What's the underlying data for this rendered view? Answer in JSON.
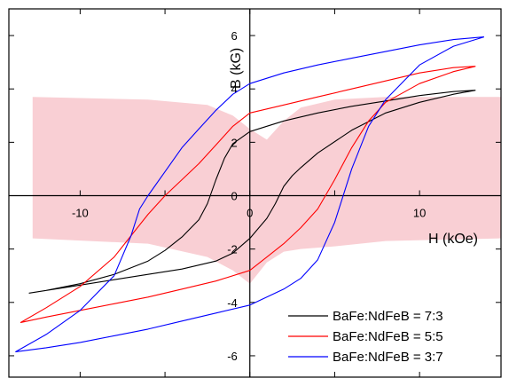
{
  "chart_data": {
    "type": "line",
    "xlabel": "H (kOe)",
    "ylabel": "B (kG)",
    "xlim": [
      -14.2,
      14.8
    ],
    "ylim": [
      -6.8,
      7.0
    ],
    "x_ticks": [
      -10,
      -5,
      0,
      5,
      10
    ],
    "y_ticks": [
      -6,
      -4,
      -2,
      0,
      2,
      4,
      6
    ],
    "x_tick_labels": [
      "-10",
      "0",
      "10"
    ],
    "y_tick_labels": [
      "-6",
      "-4",
      "-2",
      "0",
      "2",
      "4",
      "6"
    ],
    "legend_position": "bottom-right",
    "shaded_band": {
      "color": "#f9cfd4",
      "x": [
        -12.8,
        -6,
        -2.5,
        -1,
        0,
        1,
        2,
        3,
        5,
        8,
        14.8
      ],
      "upper": [
        3.7,
        3.6,
        3.4,
        3.0,
        2.5,
        2.1,
        2.8,
        3.3,
        3.6,
        3.7,
        3.7
      ],
      "lower": [
        -1.6,
        -1.8,
        -2.3,
        -2.8,
        -3.3,
        -2.5,
        -2.1,
        -2.0,
        -1.9,
        -1.7,
        -1.6
      ]
    },
    "series": [
      {
        "name": "BaFe:NdFeB = 7:3",
        "color": "#000000",
        "x": [
          13.3,
          12,
          10,
          8,
          6,
          4,
          2,
          0,
          -1,
          -1.5,
          -2,
          -2.5,
          -3,
          -4,
          -5,
          -6,
          -8,
          -10,
          -12,
          -13,
          -13,
          -12,
          -10,
          -8,
          -6,
          -4,
          -2,
          -1,
          0,
          1,
          1.5,
          2,
          2.5,
          3,
          4,
          6,
          8,
          10,
          12,
          13.3
        ],
        "y": [
          3.95,
          3.9,
          3.75,
          3.55,
          3.35,
          3.1,
          2.8,
          2.4,
          1.95,
          1.4,
          0.6,
          -0.3,
          -0.9,
          -1.55,
          -2.05,
          -2.45,
          -2.95,
          -3.3,
          -3.55,
          -3.65,
          -3.65,
          -3.55,
          -3.35,
          -3.15,
          -2.95,
          -2.75,
          -2.45,
          -2.15,
          -1.6,
          -0.85,
          -0.3,
          0.35,
          0.75,
          1.05,
          1.6,
          2.45,
          3.1,
          3.5,
          3.8,
          3.95
        ]
      },
      {
        "name": "BaFe:NdFeB = 5:5",
        "color": "#ff0000",
        "x": [
          13.3,
          12,
          10,
          8,
          6,
          4,
          2,
          0,
          -1,
          -2,
          -3,
          -4,
          -5,
          -6,
          -7,
          -8,
          -10,
          -12,
          -13.5,
          -13.5,
          -12,
          -10,
          -8,
          -6,
          -4,
          -2,
          0,
          1,
          2,
          3,
          4,
          5,
          6,
          7,
          8,
          10,
          12,
          13.3
        ],
        "y": [
          4.85,
          4.8,
          4.6,
          4.3,
          4.0,
          3.7,
          3.4,
          3.1,
          2.6,
          1.9,
          1.2,
          0.6,
          0.0,
          -0.7,
          -1.5,
          -2.3,
          -3.4,
          -4.2,
          -4.75,
          -4.75,
          -4.55,
          -4.3,
          -4.05,
          -3.8,
          -3.5,
          -3.2,
          -2.8,
          -2.3,
          -1.8,
          -1.2,
          -0.5,
          0.6,
          1.8,
          2.8,
          3.5,
          4.2,
          4.65,
          4.85
        ]
      },
      {
        "name": "BaFe:NdFeB = 3:7",
        "color": "#0000ff",
        "x": [
          13.8,
          12,
          10,
          8,
          6,
          4,
          2,
          0,
          -1,
          -2,
          -3,
          -4,
          -5,
          -6,
          -6.5,
          -7,
          -8,
          -10,
          -12,
          -13.8,
          -13.8,
          -12,
          -10,
          -8,
          -6,
          -4,
          -2,
          0,
          2,
          3,
          4,
          5,
          6,
          7,
          8,
          10,
          12,
          13.8
        ],
        "y": [
          5.95,
          5.85,
          5.65,
          5.4,
          5.15,
          4.9,
          4.6,
          4.2,
          3.8,
          3.2,
          2.5,
          1.8,
          0.9,
          0.0,
          -0.5,
          -1.5,
          -3.0,
          -4.3,
          -5.2,
          -5.85,
          -5.85,
          -5.7,
          -5.5,
          -5.25,
          -5.0,
          -4.7,
          -4.4,
          -4.1,
          -3.5,
          -3.1,
          -2.4,
          -1.0,
          1.0,
          2.6,
          3.6,
          4.9,
          5.6,
          5.95
        ]
      }
    ]
  }
}
